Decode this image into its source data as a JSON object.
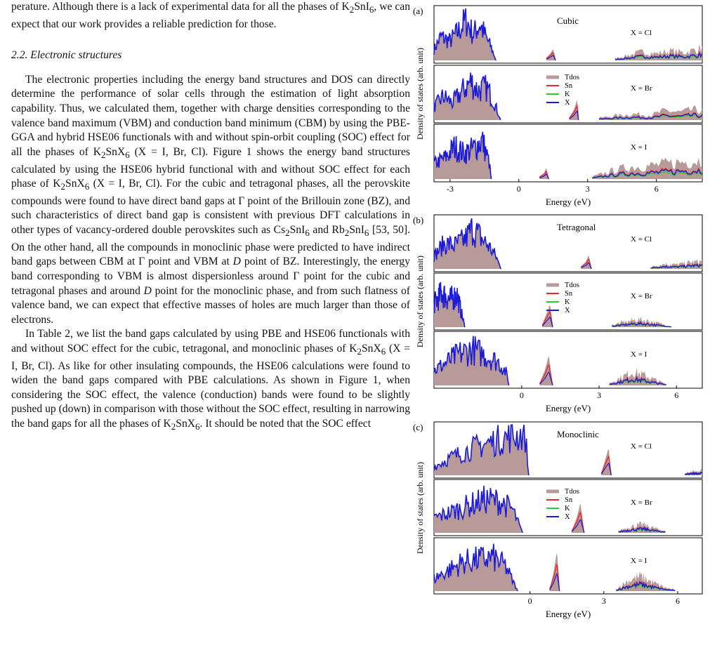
{
  "article": {
    "para0": [
      "perature. Although there is a lack of experimental data for all the phases of K",
      "2",
      "SnI",
      "6",
      ", we can expect that our work provides a reliable prediction for those."
    ],
    "section": "2.2. Electronic structures",
    "para1": [
      "The electronic properties including the energy band structures and DOS can directly determine the performance of solar cells through the estimation of light absorption capability. Thus, we calculated them, together with charge densities corresponding to the valence band maximum (VBM) and conduction band minimum (CBM) by using the PBE-GGA and hybrid HSE06 functionals with and without spin-orbit coupling (SOC) effect for all the phases of K",
      "2",
      "SnX",
      "6",
      " (X = I, Br, Cl). Figure 1 shows the energy band structures calculated by using the HSE06 hybrid functional with and without SOC effect for each phase of K",
      "2",
      "SnX",
      "6",
      " (X = I, Br, Cl). For the cubic and tetragonal phases, all the perovskite compounds were found to have direct band gaps at Γ point of the Brillouin zone (BZ), and such characteristics of direct band gap is consistent with previous DFT calculations in other types of vacancy-ordered double perovskites such as Cs",
      "2",
      "SnI",
      "6",
      " and Rb",
      "2",
      "SnI",
      "6",
      " [53, 50]. On the other hand, all the compounds in monoclinic phase were predicted to have indirect band gaps between CBM at Γ point and VBM at ",
      "D",
      " point of BZ. Interestingly, the energy band corresponding to VBM is almost dispersionless around Γ point for the cubic and tetragonal phases and around ",
      "D",
      " point for the monoclinic phase, and from such flatness of valence band, we can expect that effective masses of holes are much larger than those of electrons."
    ],
    "para2": [
      "In Table 2, we list the band gaps calculated by using PBE and HSE06 functionals with and without SOC effect for the cubic, tetragonal, and monoclinic phases of K",
      "2",
      "SnX",
      "6",
      " (X = I, Br, Cl). As like for other insulating compounds, the HSE06 calculations were found to widen the band gaps compared with PBE calculations. As shown in Figure 1, when considering the SOC effect, the valence (conduction) bands were found to be slightly pushed up (down) in comparison with those without the SOC effect, resulting in narrowing the band gaps for all the phases of K",
      "2",
      "SnX",
      "6",
      ". It should be noted that the SOC effect"
    ]
  },
  "colors": {
    "tdos": "#b89a98",
    "sn": "#e8282a",
    "k": "#2bcc2b",
    "x": "#1a1ad8"
  },
  "chart_data": [
    {
      "type": "area",
      "panel": "(a)",
      "title": "Cubic",
      "xlabel": "Energy (eV)",
      "ylabel": "Density of states (arb. unit)",
      "xlim": [
        -3.7,
        8
      ],
      "xticks": [
        -3,
        0,
        3,
        6
      ],
      "tick_labels": [
        "-3",
        "0",
        "3",
        "6"
      ],
      "legend": [
        "Tdos",
        "Sn",
        "K",
        "X"
      ],
      "subplots": [
        {
          "label": "X = Cl",
          "peaks": [
            {
              "lo": -3.7,
              "hi": -1,
              "x": [
                -3.7,
                -3.4,
                -3.0,
                -2.6,
                -2.3,
                -2.0,
                -1.7,
                -1.4,
                -1.2,
                -1.0
              ],
              "y": [
                0.25,
                0.55,
                0.45,
                0.7,
                0.95,
                0.6,
                0.85,
                0.5,
                0.3,
                0.0
              ],
              "kind": "valence"
            },
            {
              "lo": 1.2,
              "hi": 1.6,
              "x": [
                1.2,
                1.35,
                1.5,
                1.6
              ],
              "y": [
                0.05,
                0.12,
                0.22,
                0.0
              ],
              "kind": "sn"
            },
            {
              "lo": 4.2,
              "hi": 8,
              "x": [
                4.2,
                4.8,
                5.4,
                6.0,
                6.6,
                7.2,
                7.8,
                8.0
              ],
              "y": [
                0.05,
                0.12,
                0.2,
                0.16,
                0.22,
                0.18,
                0.26,
                0.3
              ],
              "kind": "cond"
            }
          ]
        },
        {
          "label": "X = Br",
          "peaks": [
            {
              "lo": -3.7,
              "hi": -0.8,
              "x": [
                -3.7,
                -3.3,
                -2.9,
                -2.5,
                -2.1,
                -1.8,
                -1.4,
                -1.1,
                -0.8
              ],
              "y": [
                0.3,
                0.55,
                0.4,
                0.65,
                0.9,
                0.7,
                0.75,
                0.45,
                0.0
              ],
              "kind": "valence"
            },
            {
              "lo": 2.2,
              "hi": 2.6,
              "x": [
                2.2,
                2.4,
                2.55,
                2.6
              ],
              "y": [
                0.05,
                0.2,
                0.4,
                0.0
              ],
              "kind": "sn"
            },
            {
              "lo": 3.5,
              "hi": 8,
              "x": [
                3.5,
                4.2,
                5.0,
                5.8,
                6.4,
                7.0,
                7.6,
                8.0
              ],
              "y": [
                0.05,
                0.1,
                0.14,
                0.12,
                0.22,
                0.18,
                0.24,
                0.2
              ],
              "kind": "cond"
            }
          ]
        },
        {
          "label": "X = I",
          "peaks": [
            {
              "lo": -3.7,
              "hi": -1.2,
              "x": [
                -3.7,
                -3.2,
                -2.8,
                -2.4,
                -2.0,
                -1.6,
                -1.3,
                -1.2
              ],
              "y": [
                0.35,
                0.5,
                0.75,
                0.6,
                0.7,
                0.9,
                0.4,
                0.0
              ],
              "kind": "valence"
            },
            {
              "lo": 0.9,
              "hi": 1.3,
              "x": [
                0.9,
                1.1,
                1.2,
                1.3
              ],
              "y": [
                0.05,
                0.12,
                0.22,
                0.0
              ],
              "kind": "sn"
            },
            {
              "lo": 3.2,
              "hi": 8,
              "x": [
                3.2,
                4.0,
                4.8,
                5.6,
                6.4,
                7.2,
                8.0
              ],
              "y": [
                0.05,
                0.18,
                0.28,
                0.3,
                0.35,
                0.4,
                0.45
              ],
              "kind": "cond"
            }
          ]
        }
      ]
    },
    {
      "type": "area",
      "panel": "(b)",
      "title": "Tetragonal",
      "xlabel": "Energy (eV)",
      "ylabel": "Density of states (arb. unit)",
      "xlim": [
        -3.4,
        7
      ],
      "xticks": [
        0,
        3,
        6
      ],
      "tick_labels": [
        "0",
        "3",
        "6"
      ],
      "legend": [
        "Tdos",
        "Sn",
        "K",
        "X"
      ],
      "subplots": [
        {
          "label": "X = Cl",
          "peaks": [
            {
              "lo": -3.4,
              "hi": -0.8,
              "x": [
                -3.4,
                -3.0,
                -2.6,
                -2.2,
                -1.9,
                -1.6,
                -1.3,
                -1.0,
                -0.8
              ],
              "y": [
                0.3,
                0.6,
                0.55,
                0.7,
                0.95,
                0.75,
                0.55,
                0.3,
                0.0
              ],
              "kind": "valence"
            },
            {
              "lo": 2.3,
              "hi": 2.7,
              "x": [
                2.3,
                2.5,
                2.6,
                2.7
              ],
              "y": [
                0.05,
                0.15,
                0.28,
                0.0
              ],
              "kind": "sn"
            },
            {
              "lo": 5.0,
              "hi": 7,
              "x": [
                5.0,
                5.5,
                6.0,
                6.5,
                7.0
              ],
              "y": [
                0.04,
                0.12,
                0.1,
                0.15,
                0.18
              ],
              "kind": "cond"
            }
          ]
        },
        {
          "label": "X = Br",
          "peaks": [
            {
              "lo": -3.4,
              "hi": -2.2,
              "x": [
                -3.4,
                -3.1,
                -2.8,
                -2.5,
                -2.2
              ],
              "y": [
                0.55,
                0.8,
                0.65,
                0.75,
                0.0
              ],
              "kind": "valence"
            },
            {
              "lo": 0.8,
              "hi": 1.2,
              "x": [
                0.8,
                0.95,
                1.1,
                1.2
              ],
              "y": [
                0.05,
                0.25,
                0.45,
                0.0
              ],
              "kind": "sn"
            },
            {
              "lo": 3.5,
              "hi": 5.8,
              "x": [
                3.5,
                4.0,
                4.5,
                5.0,
                5.5,
                5.8
              ],
              "y": [
                0.05,
                0.12,
                0.18,
                0.14,
                0.06,
                0.02
              ],
              "kind": "cond"
            }
          ]
        },
        {
          "label": "X = I",
          "peaks": [
            {
              "lo": -3.4,
              "hi": -0.5,
              "x": [
                -3.4,
                -2.9,
                -2.4,
                -1.9,
                -1.4,
                -0.9,
                -0.6,
                -0.5
              ],
              "y": [
                0.35,
                0.55,
                0.75,
                0.85,
                0.7,
                0.55,
                0.3,
                0.0
              ],
              "kind": "valence"
            },
            {
              "lo": 0.7,
              "hi": 1.2,
              "x": [
                0.7,
                0.9,
                1.05,
                1.2
              ],
              "y": [
                0.05,
                0.3,
                0.6,
                0.0
              ],
              "kind": "sn"
            },
            {
              "lo": 3.4,
              "hi": 5.6,
              "x": [
                3.4,
                3.9,
                4.3,
                4.7,
                5.1,
                5.6
              ],
              "y": [
                0.05,
                0.2,
                0.32,
                0.25,
                0.15,
                0.03
              ],
              "kind": "cond"
            }
          ]
        }
      ]
    },
    {
      "type": "area",
      "panel": "(c)",
      "title": "Monoclinic",
      "xlabel": "Energy (eV)",
      "ylabel": "Density of states (arb. unit)",
      "xlim": [
        -3.9,
        7
      ],
      "xticks": [
        0,
        3,
        6
      ],
      "tick_labels": [
        "0",
        "3",
        "6"
      ],
      "legend": [
        "Tdos",
        "Sn",
        "K",
        "X"
      ],
      "subplots": [
        {
          "label": "X = Cl",
          "peaks": [
            {
              "lo": -3.9,
              "hi": -0.05,
              "x": [
                -3.9,
                -3.3,
                -2.7,
                -2.1,
                -1.5,
                -1.0,
                -0.5,
                -0.2,
                -0.05
              ],
              "y": [
                0.2,
                0.4,
                0.55,
                0.7,
                0.8,
                0.9,
                0.95,
                1.0,
                0.0
              ],
              "kind": "valence"
            },
            {
              "lo": 2.9,
              "hi": 3.3,
              "x": [
                2.9,
                3.05,
                3.2,
                3.3
              ],
              "y": [
                0.05,
                0.3,
                0.55,
                0.0
              ],
              "kind": "sn"
            },
            {
              "lo": 6.3,
              "hi": 7,
              "x": [
                6.3,
                6.6,
                6.8,
                7.0
              ],
              "y": [
                0.04,
                0.1,
                0.08,
                0.12
              ],
              "kind": "cond"
            }
          ]
        },
        {
          "label": "X = Br",
          "peaks": [
            {
              "lo": -3.9,
              "hi": -0.3,
              "x": [
                -3.9,
                -3.2,
                -2.5,
                -1.8,
                -1.2,
                -0.7,
                -0.3
              ],
              "y": [
                0.35,
                0.5,
                0.65,
                0.8,
                0.75,
                0.55,
                0.0
              ],
              "kind": "valence"
            },
            {
              "lo": 1.7,
              "hi": 2.2,
              "x": [
                1.7,
                1.9,
                2.05,
                2.2
              ],
              "y": [
                0.05,
                0.3,
                0.6,
                0.0
              ],
              "kind": "sn"
            },
            {
              "lo": 3.6,
              "hi": 5.5,
              "x": [
                3.6,
                4.1,
                4.6,
                5.0,
                5.5
              ],
              "y": [
                0.05,
                0.15,
                0.2,
                0.12,
                0.04
              ],
              "kind": "cond"
            }
          ]
        },
        {
          "label": "X = I",
          "peaks": [
            {
              "lo": -3.9,
              "hi": -0.5,
              "x": [
                -3.9,
                -3.3,
                -2.7,
                -2.1,
                -1.5,
                -1.0,
                -0.5
              ],
              "y": [
                0.3,
                0.5,
                0.7,
                0.75,
                0.8,
                0.6,
                0.0
              ],
              "kind": "valence"
            },
            {
              "lo": 0.8,
              "hi": 1.2,
              "x": [
                0.8,
                0.95,
                1.1,
                1.2
              ],
              "y": [
                0.05,
                0.35,
                0.8,
                0.0
              ],
              "kind": "sn"
            },
            {
              "lo": 3.5,
              "hi": 5.9,
              "x": [
                3.5,
                4.0,
                4.5,
                5.0,
                5.5,
                5.9
              ],
              "y": [
                0.05,
                0.25,
                0.35,
                0.2,
                0.08,
                0.03
              ],
              "kind": "cond"
            }
          ]
        }
      ]
    }
  ]
}
